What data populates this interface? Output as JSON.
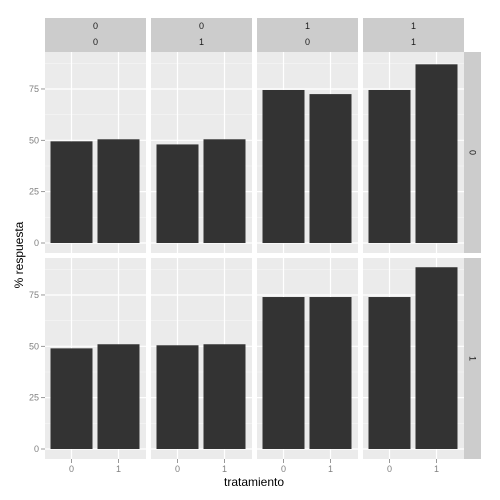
{
  "chart_data": {
    "type": "bar",
    "xlabel": "tratamiento",
    "ylabel": "% respuesta",
    "ylim": [
      0,
      93
    ],
    "y_ticks": [
      0,
      25,
      50,
      75
    ],
    "categories": [
      "0",
      "1"
    ],
    "grid": true,
    "col_strips": [
      [
        "0",
        "0"
      ],
      [
        "0",
        "1"
      ],
      [
        "1",
        "0"
      ],
      [
        "1",
        "1"
      ]
    ],
    "row_strips": [
      "0",
      "1"
    ],
    "bar_color": "#333333",
    "panel_background": "#ebebeb",
    "strip_background": "#cccccc",
    "panels": [
      {
        "row": 0,
        "col": 0,
        "values": [
          49.5,
          50.5
        ]
      },
      {
        "row": 0,
        "col": 1,
        "values": [
          48,
          50.5
        ]
      },
      {
        "row": 0,
        "col": 2,
        "values": [
          74.5,
          72.5
        ]
      },
      {
        "row": 0,
        "col": 3,
        "values": [
          74.5,
          87
        ]
      },
      {
        "row": 1,
        "col": 0,
        "values": [
          49,
          51
        ]
      },
      {
        "row": 1,
        "col": 1,
        "values": [
          50.5,
          51
        ]
      },
      {
        "row": 1,
        "col": 2,
        "values": [
          74,
          74
        ]
      },
      {
        "row": 1,
        "col": 3,
        "values": [
          74,
          88.5
        ]
      }
    ]
  }
}
